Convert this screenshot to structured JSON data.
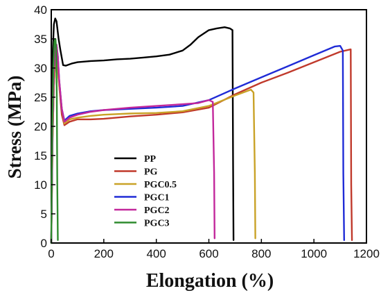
{
  "chart_data": {
    "type": "line",
    "title": "",
    "xlabel": "Elongation (%)",
    "ylabel": "Stress (MPa)",
    "xlim": [
      0,
      1200
    ],
    "ylim": [
      0,
      40
    ],
    "xticks": [
      0,
      200,
      400,
      600,
      800,
      1000,
      1200
    ],
    "yticks": [
      0,
      5,
      10,
      15,
      20,
      25,
      30,
      35,
      40
    ],
    "grid": false,
    "legend_position": "lower-left",
    "series": [
      {
        "name": "PP",
        "color": "#000000",
        "x": [
          0,
          5,
          10,
          15,
          20,
          28,
          35,
          45,
          55,
          80,
          100,
          150,
          200,
          250,
          300,
          350,
          400,
          450,
          500,
          530,
          560,
          600,
          630,
          660,
          680,
          690,
          692,
          694
        ],
        "y": [
          0,
          32,
          37.5,
          38.5,
          38,
          35,
          33,
          30.5,
          30.4,
          30.8,
          31,
          31.2,
          31.3,
          31.5,
          31.6,
          31.8,
          32,
          32.3,
          33,
          34,
          35.3,
          36.5,
          36.8,
          37,
          36.8,
          36.5,
          15,
          0.5
        ]
      },
      {
        "name": "PG",
        "color": "#c0392b",
        "x": [
          0,
          5,
          10,
          15,
          20,
          25,
          30,
          40,
          50,
          70,
          100,
          150,
          200,
          300,
          400,
          500,
          600,
          700,
          800,
          900,
          1000,
          1100,
          1140,
          1142,
          1145
        ],
        "y": [
          0,
          18,
          27,
          31,
          31.5,
          30,
          27,
          22,
          20.2,
          20.8,
          21.2,
          21.2,
          21.3,
          21.7,
          22,
          22.4,
          23.2,
          25.5,
          27.5,
          29.2,
          31,
          32.8,
          33.2,
          10,
          0.5
        ]
      },
      {
        "name": "PGC0.5",
        "color": "#c9a227",
        "x": [
          0,
          5,
          10,
          15,
          20,
          25,
          30,
          40,
          50,
          70,
          100,
          150,
          200,
          300,
          400,
          500,
          600,
          700,
          760,
          770,
          775,
          777
        ],
        "y": [
          0,
          18,
          27,
          31,
          31.5,
          29.5,
          27,
          23,
          20.5,
          21.2,
          21.5,
          21.8,
          22,
          22.2,
          22.3,
          22.6,
          23.5,
          25.3,
          26.3,
          25.8,
          12,
          0.8
        ]
      },
      {
        "name": "PGC1",
        "color": "#1f2bd6",
        "x": [
          0,
          5,
          10,
          15,
          20,
          25,
          30,
          40,
          50,
          70,
          100,
          150,
          200,
          300,
          400,
          500,
          600,
          700,
          800,
          900,
          1000,
          1080,
          1100,
          1110,
          1112,
          1115
        ],
        "y": [
          0,
          20,
          29,
          33.5,
          34,
          32,
          28,
          23,
          21,
          21.8,
          22.2,
          22.6,
          22.8,
          23,
          23.2,
          23.5,
          24.5,
          26.5,
          28.4,
          30.3,
          32.2,
          33.7,
          33.8,
          33,
          12,
          0.5
        ]
      },
      {
        "name": "PGC2",
        "color": "#c2279b",
        "x": [
          0,
          5,
          10,
          15,
          20,
          25,
          30,
          40,
          50,
          70,
          100,
          150,
          200,
          300,
          400,
          500,
          560,
          600,
          615,
          620,
          622
        ],
        "y": [
          0,
          20,
          29,
          33,
          34,
          32,
          28,
          23,
          20.8,
          21.5,
          22,
          22.5,
          22.8,
          23.2,
          23.5,
          23.8,
          24,
          24.5,
          24.2,
          12,
          0.8
        ]
      },
      {
        "name": "PGC3",
        "color": "#2e8b2e",
        "x": [
          0,
          4,
          8,
          12,
          16,
          19,
          21,
          23,
          25
        ],
        "y": [
          0,
          20,
          30,
          34.5,
          35,
          33,
          25,
          10,
          0.5
        ]
      }
    ]
  }
}
